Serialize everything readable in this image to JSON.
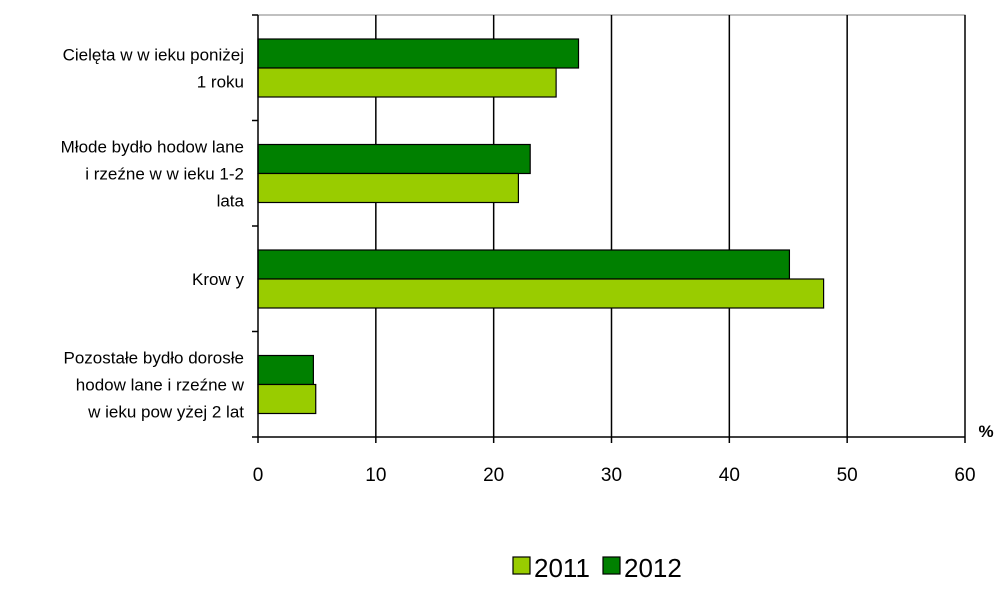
{
  "chart_data": {
    "type": "bar",
    "orientation": "horizontal",
    "categories": [
      [
        "Cielęta w  w ieku poniżej",
        "1 roku"
      ],
      [
        "Młode bydło hodow lane",
        "i rzeźne w  w ieku 1-2",
        "lata"
      ],
      [
        "Krow y"
      ],
      [
        "Pozostałe bydło dorosłe",
        "hodow lane i rzeźne w",
        "w ieku pow yżej 2 lat"
      ]
    ],
    "series": [
      {
        "name": "2011",
        "color": "#99cc00",
        "values": [
          25.3,
          22.1,
          48.0,
          4.9
        ]
      },
      {
        "name": "2012",
        "color": "#008000",
        "values": [
          27.2,
          23.1,
          45.1,
          4.7
        ]
      }
    ],
    "xlim": [
      0,
      60
    ],
    "xticks": [
      "0",
      "10",
      "20",
      "30",
      "40",
      "50",
      "60"
    ],
    "unit": "%",
    "grid": true,
    "legend_position": "bottom-center"
  }
}
